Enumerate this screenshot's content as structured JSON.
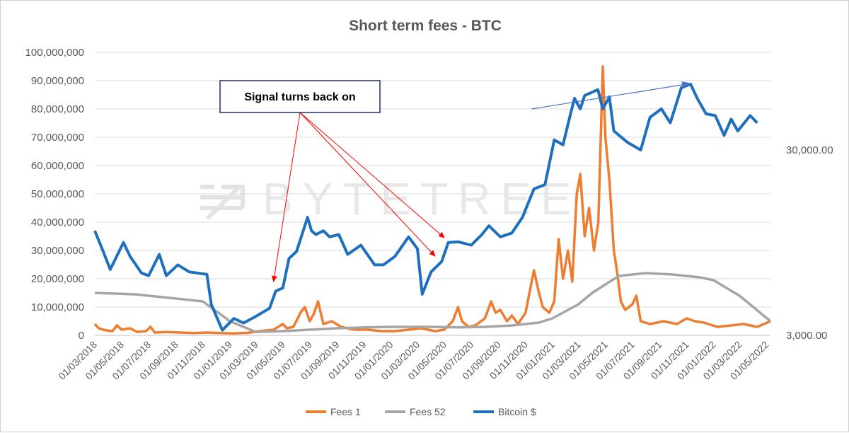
{
  "chart_data": {
    "type": "line",
    "title": "Short term fees - BTC",
    "y_left": {
      "ylim": [
        0,
        100000000
      ],
      "ticks": [
        "0",
        "10,000,000",
        "20,000,000",
        "30,000,000",
        "40,000,000",
        "50,000,000",
        "60,000,000",
        "70,000,000",
        "80,000,000",
        "90,000,000",
        "100,000,000"
      ]
    },
    "y_right": {
      "scale": "log",
      "ticks": [
        {
          "label": "3,000.00",
          "value": 3000
        },
        {
          "label": "30,000.00",
          "value": 30000
        }
      ]
    },
    "x_ticks": [
      "01/03/2018",
      "01/05/2018",
      "01/07/2018",
      "01/09/2018",
      "01/11/2018",
      "01/01/2019",
      "01/03/2019",
      "01/05/2019",
      "01/07/2019",
      "01/09/2019",
      "01/11/2019",
      "01/01/2020",
      "01/03/2020",
      "01/05/2020",
      "01/07/2020",
      "01/09/2020",
      "01/11/2020",
      "01/01/2021",
      "01/03/2021",
      "01/05/2021",
      "01/07/2021",
      "01/09/2021",
      "01/11/2021",
      "01/01/2022",
      "01/03/2022",
      "01/05/2022"
    ],
    "x_range": [
      "2018-03-01",
      "2022-05-10"
    ],
    "legend_position": "bottom",
    "series": [
      {
        "name": "Fees 1",
        "color": "#ED7D31",
        "axis": "left",
        "points": [
          [
            "2018-03-01",
            4000000
          ],
          [
            "2018-03-10",
            2500000
          ],
          [
            "2018-03-25",
            1800000
          ],
          [
            "2018-04-10",
            1500000
          ],
          [
            "2018-04-20",
            3500000
          ],
          [
            "2018-05-01",
            2000000
          ],
          [
            "2018-05-20",
            2500000
          ],
          [
            "2018-06-05",
            1200000
          ],
          [
            "2018-06-25",
            1500000
          ],
          [
            "2018-07-05",
            3000000
          ],
          [
            "2018-07-15",
            1000000
          ],
          [
            "2018-08-10",
            1200000
          ],
          [
            "2018-09-10",
            1000000
          ],
          [
            "2018-10-10",
            800000
          ],
          [
            "2018-11-10",
            1000000
          ],
          [
            "2018-12-10",
            800000
          ],
          [
            "2019-01-10",
            700000
          ],
          [
            "2019-02-10",
            900000
          ],
          [
            "2019-03-10",
            1500000
          ],
          [
            "2019-04-10",
            2000000
          ],
          [
            "2019-05-01",
            4000000
          ],
          [
            "2019-05-10",
            2500000
          ],
          [
            "2019-05-25",
            3000000
          ],
          [
            "2019-06-10",
            8000000
          ],
          [
            "2019-06-20",
            10000000
          ],
          [
            "2019-07-01",
            5000000
          ],
          [
            "2019-07-10",
            7500000
          ],
          [
            "2019-07-20",
            12000000
          ],
          [
            "2019-08-01",
            4000000
          ],
          [
            "2019-08-20",
            5000000
          ],
          [
            "2019-09-10",
            3000000
          ],
          [
            "2019-10-10",
            2000000
          ],
          [
            "2019-11-10",
            2000000
          ],
          [
            "2019-12-10",
            1500000
          ],
          [
            "2020-01-10",
            1500000
          ],
          [
            "2020-02-10",
            2000000
          ],
          [
            "2020-03-10",
            2500000
          ],
          [
            "2020-04-10",
            1500000
          ],
          [
            "2020-05-01",
            2000000
          ],
          [
            "2020-05-20",
            5000000
          ],
          [
            "2020-06-01",
            10000000
          ],
          [
            "2020-06-10",
            5000000
          ],
          [
            "2020-06-25",
            3000000
          ],
          [
            "2020-07-10",
            3500000
          ],
          [
            "2020-08-01",
            6000000
          ],
          [
            "2020-08-15",
            12000000
          ],
          [
            "2020-08-25",
            8000000
          ],
          [
            "2020-09-05",
            9000000
          ],
          [
            "2020-09-20",
            5000000
          ],
          [
            "2020-10-01",
            7000000
          ],
          [
            "2020-10-15",
            4000000
          ],
          [
            "2020-11-01",
            8000000
          ],
          [
            "2020-11-20",
            23000000
          ],
          [
            "2020-11-30",
            16000000
          ],
          [
            "2020-12-10",
            10000000
          ],
          [
            "2020-12-25",
            8000000
          ],
          [
            "2021-01-05",
            12000000
          ],
          [
            "2021-01-15",
            34000000
          ],
          [
            "2021-01-25",
            20000000
          ],
          [
            "2021-02-05",
            30000000
          ],
          [
            "2021-02-15",
            19000000
          ],
          [
            "2021-02-25",
            50000000
          ],
          [
            "2021-03-05",
            57000000
          ],
          [
            "2021-03-15",
            35000000
          ],
          [
            "2021-03-25",
            45000000
          ],
          [
            "2021-04-05",
            30000000
          ],
          [
            "2021-04-15",
            40000000
          ],
          [
            "2021-04-25",
            95000000
          ],
          [
            "2021-05-01",
            70000000
          ],
          [
            "2021-05-10",
            55000000
          ],
          [
            "2021-05-20",
            30000000
          ],
          [
            "2021-05-28",
            22000000
          ],
          [
            "2021-06-05",
            12000000
          ],
          [
            "2021-06-15",
            9000000
          ],
          [
            "2021-07-01",
            11000000
          ],
          [
            "2021-07-10",
            14000000
          ],
          [
            "2021-07-20",
            5000000
          ],
          [
            "2021-08-10",
            4000000
          ],
          [
            "2021-09-10",
            5000000
          ],
          [
            "2021-10-10",
            4000000
          ],
          [
            "2021-11-01",
            6000000
          ],
          [
            "2021-11-20",
            5000000
          ],
          [
            "2021-12-10",
            4500000
          ],
          [
            "2022-01-10",
            3000000
          ],
          [
            "2022-02-10",
            3500000
          ],
          [
            "2022-03-10",
            4000000
          ],
          [
            "2022-04-10",
            3000000
          ],
          [
            "2022-05-10",
            5000000
          ]
        ]
      },
      {
        "name": "Fees 52",
        "color": "#A5A5A5",
        "axis": "left",
        "points": [
          [
            "2018-03-01",
            15000000
          ],
          [
            "2018-06-01",
            14500000
          ],
          [
            "2018-09-01",
            13000000
          ],
          [
            "2018-11-01",
            12000000
          ],
          [
            "2019-01-01",
            5000000
          ],
          [
            "2019-03-01",
            1200000
          ],
          [
            "2019-05-01",
            1500000
          ],
          [
            "2019-07-01",
            2000000
          ],
          [
            "2019-09-01",
            2500000
          ],
          [
            "2019-11-01",
            2800000
          ],
          [
            "2020-01-01",
            3000000
          ],
          [
            "2020-04-01",
            3000000
          ],
          [
            "2020-06-01",
            2800000
          ],
          [
            "2020-08-01",
            3000000
          ],
          [
            "2020-10-01",
            3500000
          ],
          [
            "2020-12-01",
            4500000
          ],
          [
            "2021-01-01",
            6000000
          ],
          [
            "2021-03-01",
            11000000
          ],
          [
            "2021-04-01",
            15000000
          ],
          [
            "2021-05-01",
            18000000
          ],
          [
            "2021-06-01",
            21000000
          ],
          [
            "2021-08-01",
            22000000
          ],
          [
            "2021-10-01",
            21500000
          ],
          [
            "2021-12-01",
            20500000
          ],
          [
            "2022-01-01",
            19500000
          ],
          [
            "2022-03-01",
            14000000
          ],
          [
            "2022-04-01",
            10000000
          ],
          [
            "2022-05-10",
            5000000
          ]
        ]
      },
      {
        "name": "Bitcoin $",
        "color": "#1F6FBF",
        "axis": "right",
        "points": [
          [
            "2018-03-01",
            11000
          ],
          [
            "2018-03-20",
            8500
          ],
          [
            "2018-04-05",
            6800
          ],
          [
            "2018-05-05",
            9500
          ],
          [
            "2018-05-20",
            8000
          ],
          [
            "2018-06-15",
            6500
          ],
          [
            "2018-07-01",
            6300
          ],
          [
            "2018-07-25",
            8200
          ],
          [
            "2018-08-10",
            6300
          ],
          [
            "2018-09-05",
            7200
          ],
          [
            "2018-10-01",
            6600
          ],
          [
            "2018-11-10",
            6400
          ],
          [
            "2018-11-20",
            4400
          ],
          [
            "2018-12-15",
            3200
          ],
          [
            "2019-01-10",
            3700
          ],
          [
            "2019-02-01",
            3500
          ],
          [
            "2019-03-01",
            3800
          ],
          [
            "2019-04-01",
            4200
          ],
          [
            "2019-04-15",
            5200
          ],
          [
            "2019-05-01",
            5400
          ],
          [
            "2019-05-15",
            7800
          ],
          [
            "2019-06-01",
            8500
          ],
          [
            "2019-06-26",
            13000
          ],
          [
            "2019-07-05",
            11000
          ],
          [
            "2019-07-15",
            10500
          ],
          [
            "2019-08-01",
            11000
          ],
          [
            "2019-08-15",
            10200
          ],
          [
            "2019-09-05",
            10500
          ],
          [
            "2019-09-25",
            8200
          ],
          [
            "2019-10-25",
            9200
          ],
          [
            "2019-11-25",
            7200
          ],
          [
            "2019-12-15",
            7200
          ],
          [
            "2020-01-10",
            8000
          ],
          [
            "2020-02-10",
            10200
          ],
          [
            "2020-03-01",
            8800
          ],
          [
            "2020-03-12",
            5000
          ],
          [
            "2020-04-01",
            6600
          ],
          [
            "2020-04-25",
            7500
          ],
          [
            "2020-05-10",
            9500
          ],
          [
            "2020-06-01",
            9600
          ],
          [
            "2020-07-01",
            9200
          ],
          [
            "2020-07-25",
            10500
          ],
          [
            "2020-08-10",
            11700
          ],
          [
            "2020-09-05",
            10200
          ],
          [
            "2020-10-01",
            10700
          ],
          [
            "2020-10-25",
            13000
          ],
          [
            "2020-11-20",
            18500
          ],
          [
            "2020-12-15",
            19500
          ],
          [
            "2021-01-05",
            34000
          ],
          [
            "2021-01-25",
            32000
          ],
          [
            "2021-02-10",
            46000
          ],
          [
            "2021-02-20",
            57000
          ],
          [
            "2021-03-05",
            50000
          ],
          [
            "2021-03-15",
            59000
          ],
          [
            "2021-04-14",
            63500
          ],
          [
            "2021-04-25",
            50000
          ],
          [
            "2021-05-10",
            58000
          ],
          [
            "2021-05-20",
            38000
          ],
          [
            "2021-06-01",
            36000
          ],
          [
            "2021-06-20",
            33000
          ],
          [
            "2021-07-20",
            30000
          ],
          [
            "2021-08-10",
            45000
          ],
          [
            "2021-09-05",
            50000
          ],
          [
            "2021-09-25",
            42000
          ],
          [
            "2021-10-20",
            65000
          ],
          [
            "2021-11-10",
            68000
          ],
          [
            "2021-11-25",
            57000
          ],
          [
            "2021-12-15",
            47000
          ],
          [
            "2022-01-05",
            46000
          ],
          [
            "2022-01-25",
            36000
          ],
          [
            "2022-02-10",
            44000
          ],
          [
            "2022-02-25",
            38000
          ],
          [
            "2022-03-25",
            46000
          ],
          [
            "2022-04-10",
            42000
          ]
        ]
      }
    ],
    "trendline": {
      "color": "#4472C4",
      "from": [
        "2020-11-15",
        80000000
      ],
      "to": [
        "2021-11-10",
        89000000
      ]
    },
    "annotation": {
      "text": "Signal turns back on",
      "arrow_color": "#FF0000",
      "targets": [
        [
          "2019-04-10",
          19000000
        ],
        [
          "2020-04-10",
          28000000
        ],
        [
          "2020-05-01",
          34500000
        ]
      ]
    }
  },
  "watermark": "BYTETREE"
}
